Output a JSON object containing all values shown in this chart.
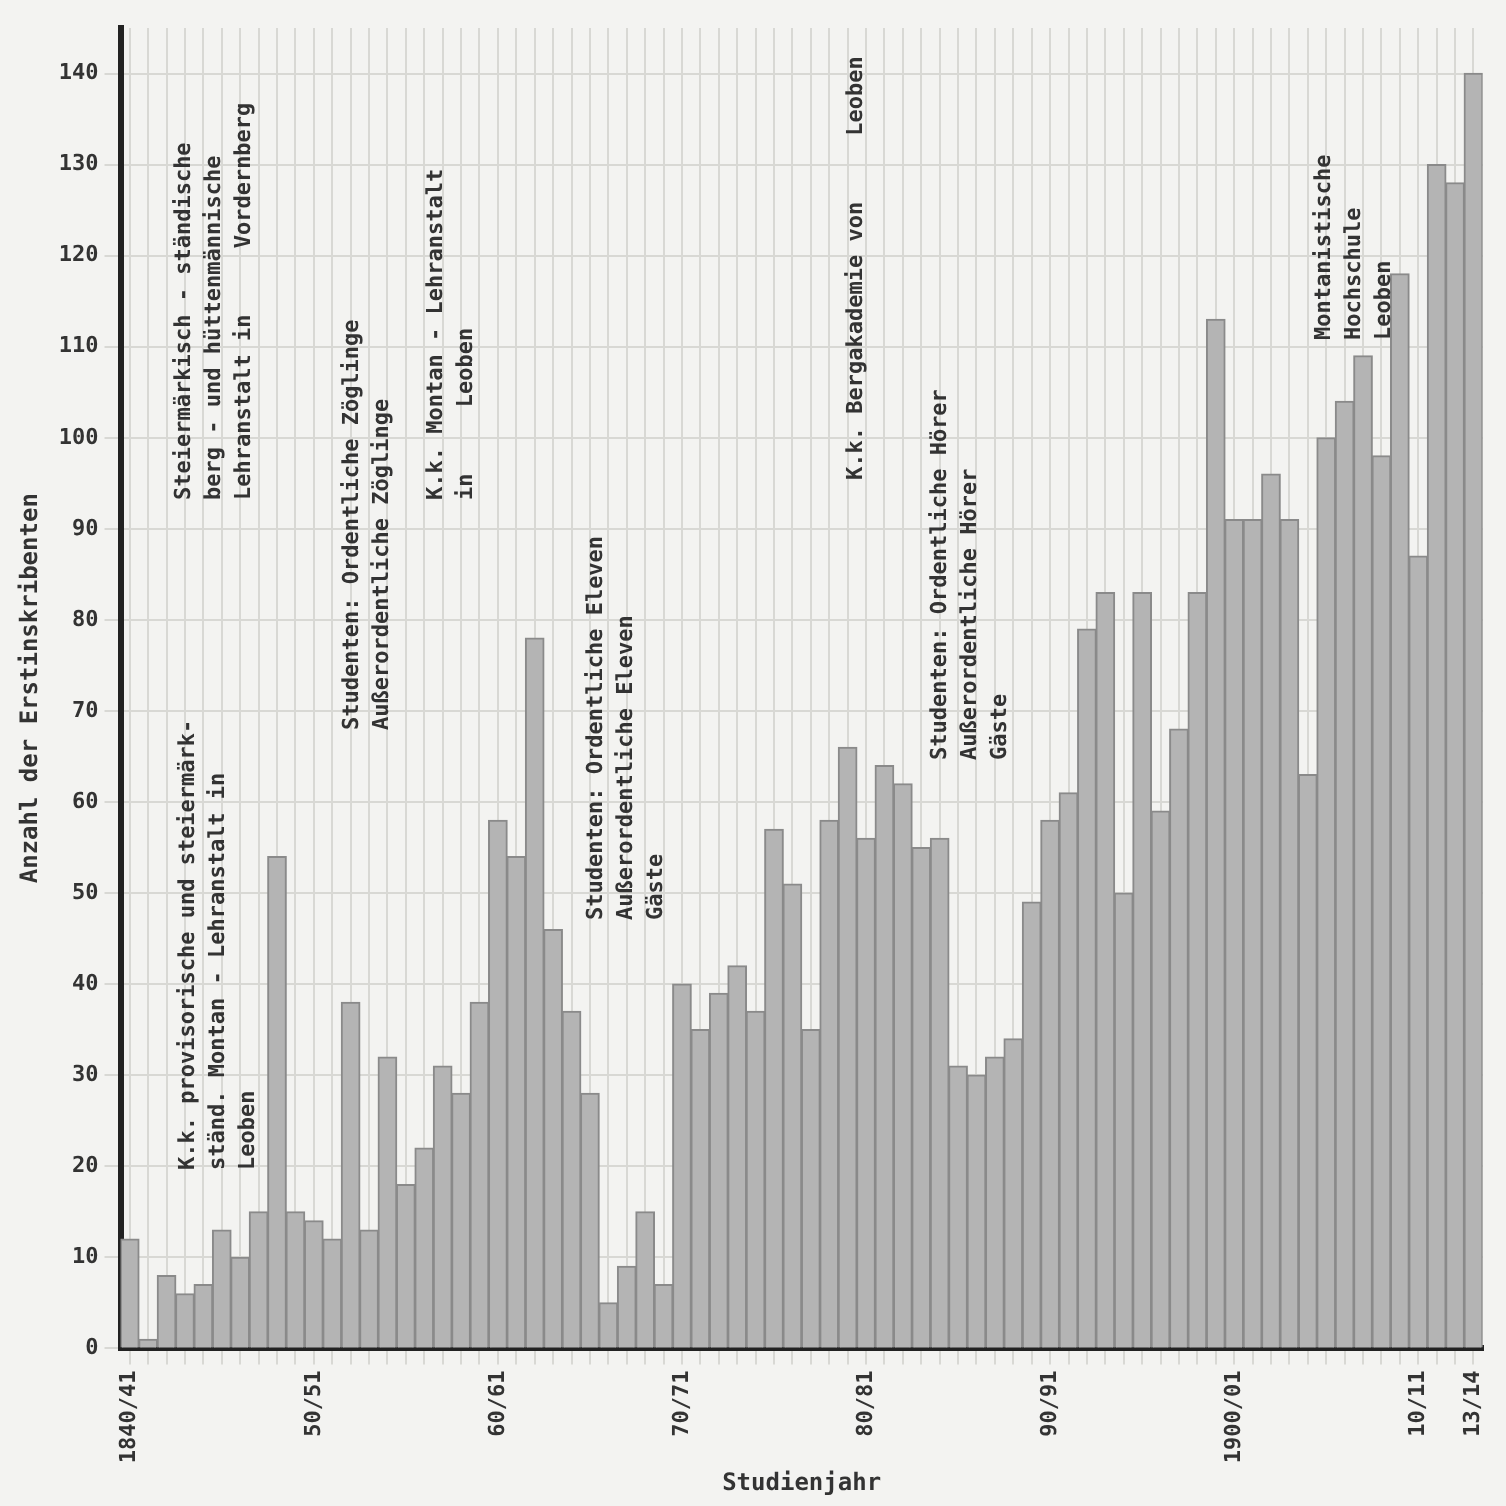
{
  "chart_data": {
    "type": "bar",
    "xlabel": "Studienjahr",
    "ylabel": "Anzahl der Erstinskribenten",
    "categories": [
      "1840/41",
      null,
      null,
      null,
      null,
      null,
      null,
      null,
      null,
      null,
      "50/51",
      null,
      null,
      null,
      null,
      null,
      null,
      null,
      null,
      null,
      "60/61",
      null,
      null,
      null,
      null,
      null,
      null,
      null,
      null,
      null,
      "70/71",
      null,
      null,
      null,
      null,
      null,
      null,
      null,
      null,
      null,
      "80/81",
      null,
      null,
      null,
      null,
      null,
      null,
      null,
      null,
      null,
      "90/91",
      null,
      null,
      null,
      null,
      null,
      null,
      null,
      null,
      null,
      "1900/01",
      null,
      null,
      null,
      null,
      null,
      null,
      null,
      null,
      null,
      "10/11",
      null,
      null,
      "13/14"
    ],
    "values": [
      12,
      1,
      8,
      6,
      7,
      13,
      10,
      15,
      54,
      15,
      14,
      12,
      38,
      13,
      32,
      18,
      22,
      31,
      28,
      38,
      58,
      54,
      78,
      46,
      37,
      28,
      5,
      9,
      15,
      7,
      40,
      35,
      39,
      42,
      37,
      57,
      51,
      35,
      58,
      66,
      56,
      64,
      62,
      55,
      56,
      31,
      30,
      32,
      34,
      49,
      58,
      61,
      79,
      83,
      50,
      83,
      59,
      68,
      83,
      113,
      91,
      91,
      96,
      91,
      63,
      100,
      104,
      109,
      98,
      118,
      87,
      130,
      128,
      140
    ],
    "color": "#b4b4b4",
    "ylim": [
      0,
      145
    ],
    "yticks": [
      0,
      10,
      20,
      30,
      40,
      50,
      60,
      70,
      80,
      90,
      100,
      110,
      120,
      130,
      140
    ],
    "grid": true,
    "annotations": [
      "K.k. provisorische und steiermärk-\nständ. Montan - Lehranstalt in\nLeoben",
      "Steiermärkisch - ständische\nberg - und hüttenmännische\nLehranstalt in     Vordernberg",
      "Studenten: Ordentliche Zöglinge\nAußerordentliche Zöglinge",
      "K.k. Montan - Lehranstalt\nin     Leoben",
      "Studenten: Ordentliche Eleven\nAußerordentliche Eleven\nGäste",
      "K.k. Bergakademie von     Leoben",
      "Studenten: Ordentliche Hörer\nAußerordentliche Hörer\nGäste",
      "Montanistische\nHochschule\nLeoben"
    ]
  }
}
